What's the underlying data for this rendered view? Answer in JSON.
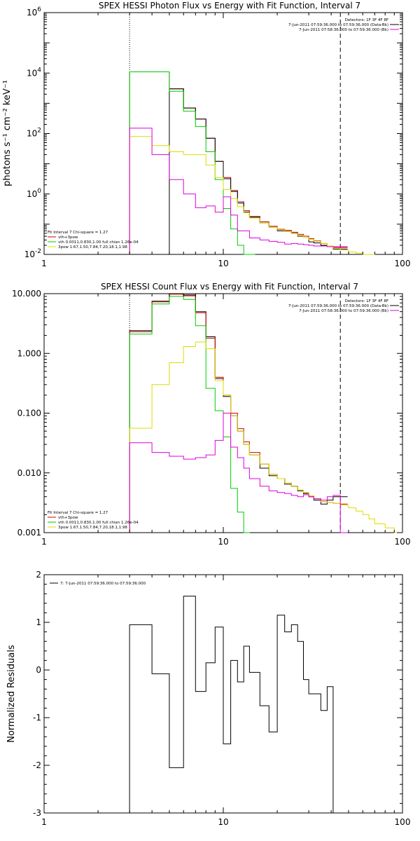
{
  "colors": {
    "total": "#000000",
    "vth_plus_3pow": "#cc0000",
    "vth": "#00cc00",
    "three_pow": "#dddd00",
    "bk": "#dd00dd",
    "axes": "#000000"
  },
  "chart_data": [
    {
      "type": "line",
      "title": "SPEX HESSI Photon Flux vs Energy with Fit Function, Interval 7",
      "xlabel": "",
      "ylabel": "photons s⁻¹ cm⁻² keV⁻¹",
      "xscale": "log",
      "yscale": "log",
      "xlim": [
        1,
        100
      ],
      "ylim": [
        0.01,
        1000000
      ],
      "x_ticks": [
        {
          "v": 1,
          "label": "1"
        },
        {
          "v": 10,
          "label": "10"
        },
        {
          "v": 100,
          "label": "100"
        }
      ],
      "y_ticks": [
        {
          "v": 0.01,
          "base": "10",
          "exp": "-2"
        },
        {
          "v": 1,
          "base": "10",
          "exp": "0"
        },
        {
          "v": 100,
          "base": "10",
          "exp": "2"
        },
        {
          "v": 10000,
          "base": "10",
          "exp": "4"
        },
        {
          "v": 1000000,
          "base": "10",
          "exp": "6"
        }
      ],
      "fit_range_keV": [
        3,
        45
      ],
      "legend_top": {
        "title": "Detectors: 1F 3F 4F 8F",
        "entries": [
          {
            "text": "7-Jun-2011 07:59:36.000 to 07:59:36.000 (Data-Bk)",
            "color": "#000000"
          },
          {
            "text": "7-Jun-2011 07:58:36.000 to 07:59:36.000 (Bk)",
            "color": "#dd00dd"
          }
        ]
      },
      "legend_bottom": {
        "title": "Fit Interval  7   Chi-square = 1.27",
        "entries": [
          {
            "text": "vth+3pow",
            "color": "#cc0000"
          },
          {
            "text": "vth 0.0011,0.830,1.00  full chian 1.26e-04",
            "color": "#00cc00"
          },
          {
            "text": "3pow 1.67,1.50,7.84,7.20,18.1,1.98",
            "color": "#dddd00"
          }
        ]
      },
      "series": [
        {
          "key": "vth_plus_3pow",
          "step": true,
          "x": [
            3,
            4,
            5,
            6,
            7,
            8,
            9,
            10,
            11,
            12,
            13,
            14,
            16,
            18,
            20,
            22,
            24,
            26,
            28,
            30,
            32,
            35,
            38,
            41,
            45
          ],
          "y": [
            11000,
            11000,
            3000,
            700,
            300,
            70,
            12,
            3.5,
            1.3,
            0.55,
            0.28,
            0.18,
            0.12,
            0.085,
            0.068,
            0.062,
            0.054,
            0.046,
            0.04,
            0.033,
            0.028,
            0.023,
            0.019,
            0.017,
            0.017
          ]
        },
        {
          "key": "total",
          "step": true,
          "x": [
            5,
            6,
            7,
            8,
            9,
            10,
            11,
            12,
            13,
            14,
            16,
            18,
            20,
            22,
            24,
            26,
            28,
            30,
            32,
            35,
            38,
            41,
            45
          ],
          "y": [
            3000,
            700,
            300,
            70,
            12,
            3.2,
            1.2,
            0.5,
            0.25,
            0.17,
            0.11,
            0.08,
            0.06,
            0.058,
            0.05,
            0.04,
            0.036,
            0.026,
            0.024,
            0.02,
            0.018,
            0.015,
            0.015
          ]
        },
        {
          "key": "vth",
          "step": true,
          "x": [
            3,
            4,
            5,
            6,
            7,
            8,
            9,
            10,
            11,
            12,
            13,
            14
          ],
          "y": [
            11000,
            11000,
            2500,
            550,
            170,
            25,
            3,
            0.33,
            0.07,
            0.02,
            0.01,
            0.01
          ]
        },
        {
          "key": "three_pow",
          "step": true,
          "x": [
            3,
            4,
            5,
            6,
            7,
            8,
            9,
            10,
            11,
            12,
            13,
            14,
            16,
            18,
            20,
            22,
            24,
            26,
            28,
            30,
            32,
            35,
            38,
            41,
            45,
            50,
            55,
            60,
            65
          ],
          "y": [
            80,
            40,
            25,
            20,
            20,
            9,
            3.5,
            1.4,
            0.7,
            0.38,
            0.24,
            0.16,
            0.11,
            0.08,
            0.065,
            0.057,
            0.049,
            0.042,
            0.036,
            0.031,
            0.027,
            0.023,
            0.019,
            0.016,
            0.014,
            0.012,
            0.011,
            0.01,
            0.01
          ]
        },
        {
          "key": "bk",
          "step": true,
          "x": [
            3,
            4,
            5,
            6,
            7,
            8,
            9,
            10,
            11,
            12,
            14,
            16,
            18,
            20,
            22,
            24,
            26,
            28,
            30,
            32,
            35,
            38,
            41,
            45
          ],
          "y": [
            150,
            20,
            3,
            1,
            0.35,
            0.4,
            0.25,
            0.8,
            0.2,
            0.06,
            0.035,
            0.03,
            0.027,
            0.025,
            0.022,
            0.023,
            0.022,
            0.021,
            0.02,
            0.019,
            0.019,
            0.018,
            0.018,
            0.018
          ]
        }
      ]
    },
    {
      "type": "line",
      "title": "SPEX HESSI Count Flux vs Energy with Fit Function, Interval 7",
      "xlabel": "",
      "ylabel": "",
      "xscale": "log",
      "yscale": "log",
      "xlim": [
        1,
        100
      ],
      "ylim": [
        0.001,
        10
      ],
      "x_ticks": [
        {
          "v": 1,
          "label": "1"
        },
        {
          "v": 10,
          "label": "10"
        },
        {
          "v": 100,
          "label": "100"
        }
      ],
      "y_ticks": [
        {
          "v": 0.001,
          "label": "0.001"
        },
        {
          "v": 0.01,
          "label": "0.010"
        },
        {
          "v": 0.1,
          "label": "0.100"
        },
        {
          "v": 1,
          "label": "1.000"
        },
        {
          "v": 10,
          "label": "10.000"
        }
      ],
      "fit_range_keV": [
        3,
        45
      ],
      "legend_top": {
        "title": "Detectors: 1F 3F 4F 8F",
        "entries": [
          {
            "text": "7-Jun-2011 07:59:36.000 to 07:59:36.000 (Data-Bk)",
            "color": "#000000"
          },
          {
            "text": "7-Jun-2011 07:58:36.000 to 07:59:36.000 (Bk)",
            "color": "#dd00dd"
          }
        ]
      },
      "legend_bottom": {
        "title": "Fit Interval  7   Chi-square = 1.27",
        "entries": [
          {
            "text": "vth+3pow",
            "color": "#cc0000"
          },
          {
            "text": "vth 0.0011,0.830,1.00  full chian 1.26e-04",
            "color": "#00cc00"
          },
          {
            "text": "3pow 1.67,1.50,7.84,7.20,18.1,1.98",
            "color": "#dddd00"
          }
        ]
      },
      "series": [
        {
          "key": "total",
          "step": true,
          "x": [
            3,
            4,
            5,
            6,
            7,
            8,
            9,
            10,
            11,
            12,
            13,
            14,
            16,
            18,
            20,
            22,
            24,
            26,
            28,
            30,
            32,
            35,
            38,
            41,
            45
          ],
          "y": [
            2.4,
            7.5,
            10.0,
            9.5,
            5.0,
            1.9,
            0.38,
            0.19,
            0.09,
            0.05,
            0.03,
            0.02,
            0.012,
            0.009,
            0.008,
            0.0065,
            0.006,
            0.005,
            0.0045,
            0.004,
            0.0035,
            0.003,
            0.0035,
            0.004,
            0.004
          ]
        },
        {
          "key": "vth_plus_3pow",
          "step": true,
          "x": [
            3,
            4,
            5,
            6,
            7,
            8,
            9,
            10,
            11,
            12,
            13,
            14,
            16,
            18,
            20,
            22,
            24,
            26,
            28,
            30,
            32,
            35,
            38,
            41,
            45
          ],
          "y": [
            2.3,
            7.3,
            9.8,
            9.2,
            4.8,
            1.8,
            0.4,
            0.2,
            0.1,
            0.055,
            0.033,
            0.022,
            0.014,
            0.0095,
            0.008,
            0.0068,
            0.006,
            0.0052,
            0.0047,
            0.0041,
            0.0037,
            0.0033,
            0.0032,
            0.0031,
            0.003
          ]
        },
        {
          "key": "vth",
          "step": true,
          "x": [
            3,
            4,
            5,
            6,
            7,
            8,
            9,
            10,
            11,
            12,
            13
          ],
          "y": [
            2.1,
            6.7,
            9.0,
            8.0,
            2.9,
            0.26,
            0.11,
            0.04,
            0.0055,
            0.0022,
            0.001
          ]
        },
        {
          "key": "three_pow",
          "step": true,
          "x": [
            3,
            4,
            5,
            6,
            7,
            8,
            9,
            10,
            11,
            12,
            13,
            14,
            16,
            18,
            20,
            22,
            24,
            26,
            28,
            30,
            32,
            35,
            38,
            41,
            45,
            50,
            55,
            60,
            65,
            70,
            80,
            90
          ],
          "y": [
            0.056,
            0.3,
            0.7,
            1.3,
            1.55,
            1.2,
            0.35,
            0.2,
            0.09,
            0.05,
            0.03,
            0.02,
            0.014,
            0.0095,
            0.008,
            0.0068,
            0.006,
            0.0052,
            0.0047,
            0.0041,
            0.0037,
            0.0033,
            0.0032,
            0.0031,
            0.0029,
            0.0026,
            0.0023,
            0.002,
            0.0017,
            0.0014,
            0.0012,
            0.001
          ]
        },
        {
          "key": "bk",
          "step": true,
          "x": [
            3,
            4,
            5,
            6,
            7,
            8,
            9,
            10,
            11,
            12,
            13,
            14,
            16,
            18,
            20,
            22,
            24,
            26,
            28,
            30,
            32,
            35,
            38,
            41,
            45
          ],
          "y": [
            0.032,
            0.022,
            0.019,
            0.017,
            0.018,
            0.02,
            0.035,
            0.1,
            0.027,
            0.018,
            0.012,
            0.008,
            0.006,
            0.005,
            0.0047,
            0.0045,
            0.0042,
            0.004,
            0.0043,
            0.004,
            0.0037,
            0.0035,
            0.004,
            0.0042,
            0.001
          ]
        }
      ]
    },
    {
      "type": "line",
      "title": "",
      "xlabel": "",
      "ylabel": "Normalized Residuals",
      "xscale": "log",
      "yscale": "linear",
      "xlim": [
        1,
        100
      ],
      "ylim": [
        -3,
        2
      ],
      "x_ticks": [
        {
          "v": 1,
          "label": "1"
        },
        {
          "v": 10,
          "label": "10"
        },
        {
          "v": 100,
          "label": "100"
        }
      ],
      "y_ticks": [
        {
          "v": -3,
          "label": "-3"
        },
        {
          "v": -2,
          "label": "-2"
        },
        {
          "v": -1,
          "label": "-1"
        },
        {
          "v": 0,
          "label": "0"
        },
        {
          "v": 1,
          "label": "1"
        },
        {
          "v": 2,
          "label": "2"
        }
      ],
      "legend_top": {
        "title": "",
        "entries": [
          {
            "text": "7:  7-Jun-2011 07:59:36.000 to 07:59:36.000",
            "color": "#000000"
          }
        ]
      },
      "series": [
        {
          "key": "total",
          "step": true,
          "x": [
            3,
            4,
            5,
            6,
            7,
            8,
            9,
            10,
            11,
            12,
            13,
            14,
            16,
            18,
            20,
            22,
            24,
            26,
            28,
            30,
            32,
            35,
            38,
            41,
            45
          ],
          "y": [
            0.95,
            -0.08,
            -2.05,
            1.55,
            -0.45,
            0.15,
            0.9,
            -1.55,
            0.2,
            -0.25,
            0.5,
            -0.05,
            -0.75,
            -1.3,
            1.15,
            0.8,
            0.95,
            0.6,
            -0.2,
            -0.5,
            -0.5,
            -0.85,
            -0.35,
            -3.0,
            -3.0
          ]
        }
      ]
    }
  ]
}
